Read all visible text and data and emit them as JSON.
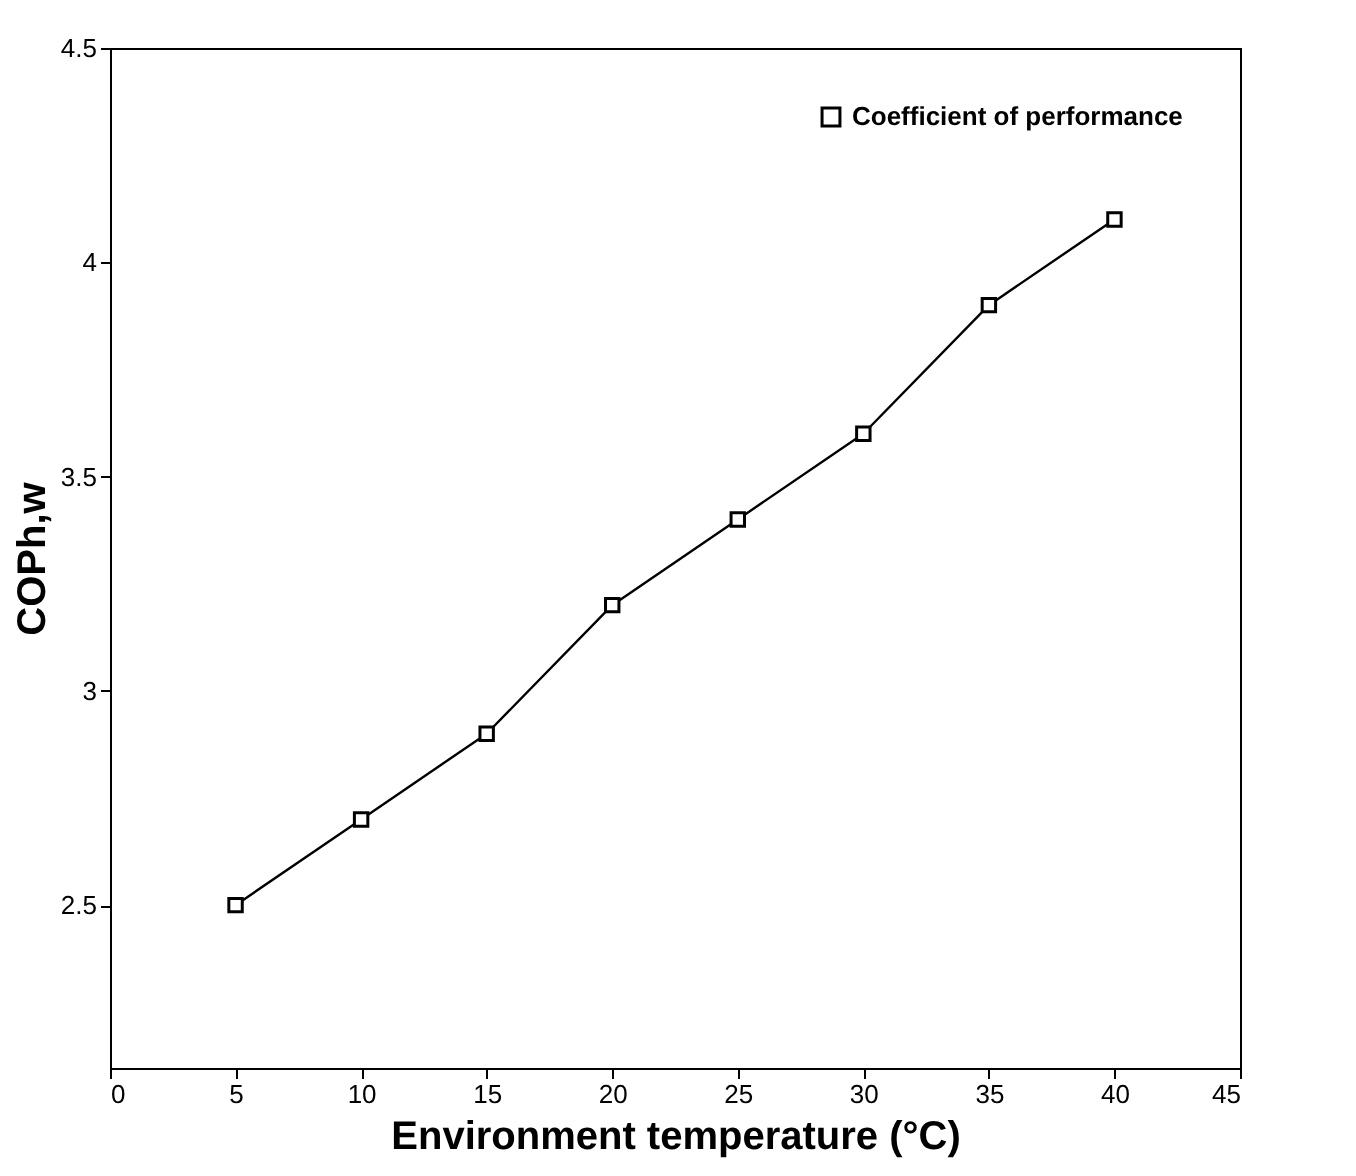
{
  "chart_data": {
    "type": "line",
    "xlabel": "Environment temperature (°C)",
    "ylabel": "COPh,w",
    "x": [
      5,
      10,
      15,
      20,
      25,
      30,
      35,
      40
    ],
    "series": [
      {
        "name": "Coefficient of performance",
        "color": "#000000",
        "values": [
          2.5,
          2.7,
          2.9,
          3.2,
          3.4,
          3.6,
          3.9,
          4.1
        ]
      }
    ],
    "xlim": [
      0,
      45
    ],
    "xticks": [
      0,
      5,
      10,
      15,
      20,
      25,
      30,
      35,
      40,
      45
    ],
    "ylim": [
      2.12,
      4.5
    ],
    "yticks": [
      2.5,
      3,
      3.5,
      4,
      4.5
    ],
    "legend": "top right",
    "marker": "square",
    "line_style": "solid",
    "grid": false
  }
}
